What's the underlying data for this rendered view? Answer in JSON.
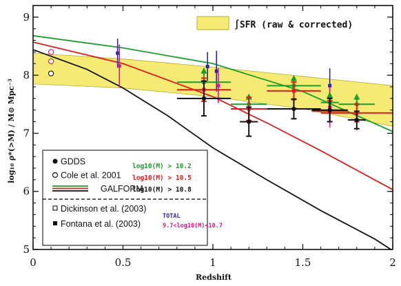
{
  "chart_data": {
    "type": "scatter",
    "xlabel": "Redshift",
    "ylabel": "log₁₀ ρ*(>M) / M⊙ Mpc⁻³",
    "xlim": [
      0,
      2
    ],
    "ylim": [
      5,
      9.2
    ],
    "x_ticks": [
      0,
      0.5,
      1,
      1.5,
      2
    ],
    "x_tick_labels": [
      "0",
      "0.5",
      "1",
      "1.5",
      "2"
    ],
    "y_ticks": [
      5,
      6,
      7,
      8,
      9
    ],
    "y_tick_labels": [
      "5",
      "6",
      "7",
      "8",
      "9"
    ],
    "colors": {
      "green": "#1a9e2a",
      "red": "#e21b1b",
      "black": "#111111",
      "blue": "#2b2a9e",
      "magenta": "#e0148c",
      "band": "#f4ea74",
      "band_edge": "#b8ad2c"
    },
    "sfr_band": {
      "label": "∫SFR (raw & corrected)",
      "x": [
        0,
        0.5,
        1,
        1.5,
        2
      ],
      "lower": [
        7.85,
        7.78,
        7.63,
        7.42,
        7.12
      ],
      "upper": [
        8.38,
        8.28,
        8.14,
        7.98,
        7.82
      ]
    },
    "model_lines": [
      {
        "name": "log10(M) > 10.2",
        "color": "green",
        "x": [
          0,
          0.5,
          1,
          1.5,
          2
        ],
        "y": [
          8.68,
          8.47,
          8.2,
          7.72,
          7.03
        ]
      },
      {
        "name": "log10(M) > 10.5",
        "color": "red",
        "x": [
          0,
          0.5,
          1,
          1.3,
          1.6,
          2
        ],
        "y": [
          8.57,
          8.2,
          7.63,
          7.18,
          6.7,
          6.03
        ]
      },
      {
        "name": "log10(M) > 10.8",
        "color": "black",
        "x": [
          0,
          0.3,
          0.5,
          0.75,
          1,
          1.3,
          1.6,
          1.9,
          2
        ],
        "y": [
          8.44,
          8.1,
          7.78,
          7.3,
          6.75,
          6.2,
          5.67,
          5.18,
          4.98
        ]
      }
    ],
    "gdds": [
      {
        "color": "green",
        "x": 0.95,
        "y": 7.88,
        "xerr": 0.15,
        "yerr": 0.22,
        "lower_limit": true
      },
      {
        "color": "green",
        "x": 1.2,
        "y": 7.5,
        "xerr": 0.1,
        "yerr": 0.15,
        "lower_limit": true
      },
      {
        "color": "green",
        "x": 1.45,
        "y": 7.82,
        "xerr": 0.15,
        "yerr": 0.15,
        "lower_limit": true
      },
      {
        "color": "green",
        "x": 1.65,
        "y": 7.53,
        "xerr": 0.05,
        "yerr": 0.15,
        "lower_limit": true
      },
      {
        "color": "green",
        "x": 1.8,
        "y": 7.5,
        "xerr": 0.1,
        "yerr": 0.15,
        "lower_limit": true
      },
      {
        "color": "red",
        "x": 0.95,
        "y": 7.75,
        "xerr": 0.15,
        "yerr": 0.2
      },
      {
        "color": "red",
        "x": 1.2,
        "y": 7.42,
        "xerr": 0.1,
        "yerr": 0.2
      },
      {
        "color": "red",
        "x": 1.45,
        "y": 7.73,
        "xerr": 0.15,
        "yerr": 0.15
      },
      {
        "color": "red",
        "x": 1.65,
        "y": 7.38,
        "xerr": 0.1,
        "yerr": 0.18
      },
      {
        "color": "red",
        "x": 1.8,
        "y": 7.35,
        "xerr": 0.2,
        "yerr": 0.15
      },
      {
        "color": "black",
        "x": 0.95,
        "y": 7.6,
        "xerr": 0.15,
        "yerr": 0.3
      },
      {
        "color": "black",
        "x": 1.2,
        "y": 7.2,
        "xerr": 0.05,
        "yerr": 0.25
      },
      {
        "color": "black",
        "x": 1.45,
        "y": 7.42,
        "xerr": 0.15,
        "yerr": 0.17
      },
      {
        "color": "black",
        "x": 1.65,
        "y": 7.4,
        "xerr": 0.1,
        "yerr": 0.2
      },
      {
        "color": "black",
        "x": 1.8,
        "y": 7.23,
        "xerr": 0.05,
        "yerr": 0.15
      }
    ],
    "cole_2001": [
      {
        "color": "magenta",
        "x": 0.1,
        "y": 8.4
      },
      {
        "color": "red",
        "x": 0.1,
        "y": 8.24
      },
      {
        "color": "black",
        "x": 0.1,
        "y": 8.03
      }
    ],
    "dickinson_2003": [
      {
        "x": 0.47,
        "y": 8.38,
        "yerr": 0.25
      },
      {
        "x": 0.97,
        "y": 8.15,
        "yerr": 0.25
      },
      {
        "x": 1.02,
        "y": 8.07,
        "yerr": 0.35
      },
      {
        "x": 1.65,
        "y": 7.82,
        "yerr": 0.3
      }
    ],
    "fontana_2003": [
      {
        "x": 0.48,
        "y": 8.16,
        "yerr": 0.37
      },
      {
        "x": 1.03,
        "y": 7.82,
        "yerr": 0.3
      },
      {
        "x": 1.65,
        "y": 7.45,
        "yerr": 0.35
      },
      {
        "x": 1.8,
        "y": 7.35,
        "yerr": 0.3
      }
    ],
    "legend": {
      "gdds": "GDDS",
      "cole": "Cole et al. 2001",
      "galform": "GALFORM",
      "mass_green": "log10(M) > 10.2",
      "mass_red": "log10(M) > 10.5",
      "mass_black": "log10(M) > 10.8",
      "dickinson": "Dickinson et al. (2003)",
      "fontana": "Fontana et al. (2003)",
      "total": "TOTAL",
      "range": "9.7<log10(M)<10.7"
    }
  }
}
